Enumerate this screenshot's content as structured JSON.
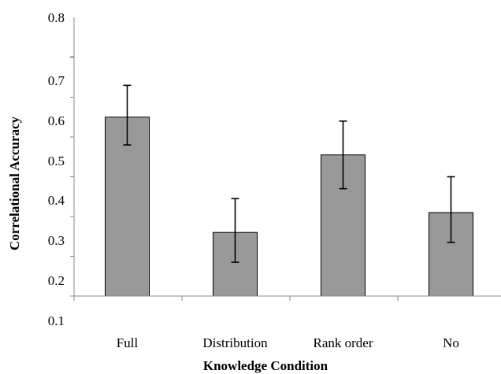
{
  "chart_data": {
    "type": "bar",
    "title": "",
    "xlabel": "Knowledge Condition",
    "ylabel": "Correlational Accuracy",
    "categories": [
      "Full",
      "Distribution",
      "Rank order",
      "No"
    ],
    "values": [
      0.65,
      0.36,
      0.555,
      0.41
    ],
    "error_low": [
      0.58,
      0.285,
      0.47,
      0.335
    ],
    "error_high": [
      0.73,
      0.445,
      0.64,
      0.5
    ],
    "ylim": [
      0.1,
      0.8
    ],
    "y_tick_labels": [
      "0.1",
      "0.2",
      "0.3",
      "0.4",
      "0.5",
      "0.6",
      "0.7",
      "0.8"
    ],
    "grid": false,
    "legend": "none",
    "bar_color": "#999999",
    "bar_edge_color": "#000000"
  }
}
